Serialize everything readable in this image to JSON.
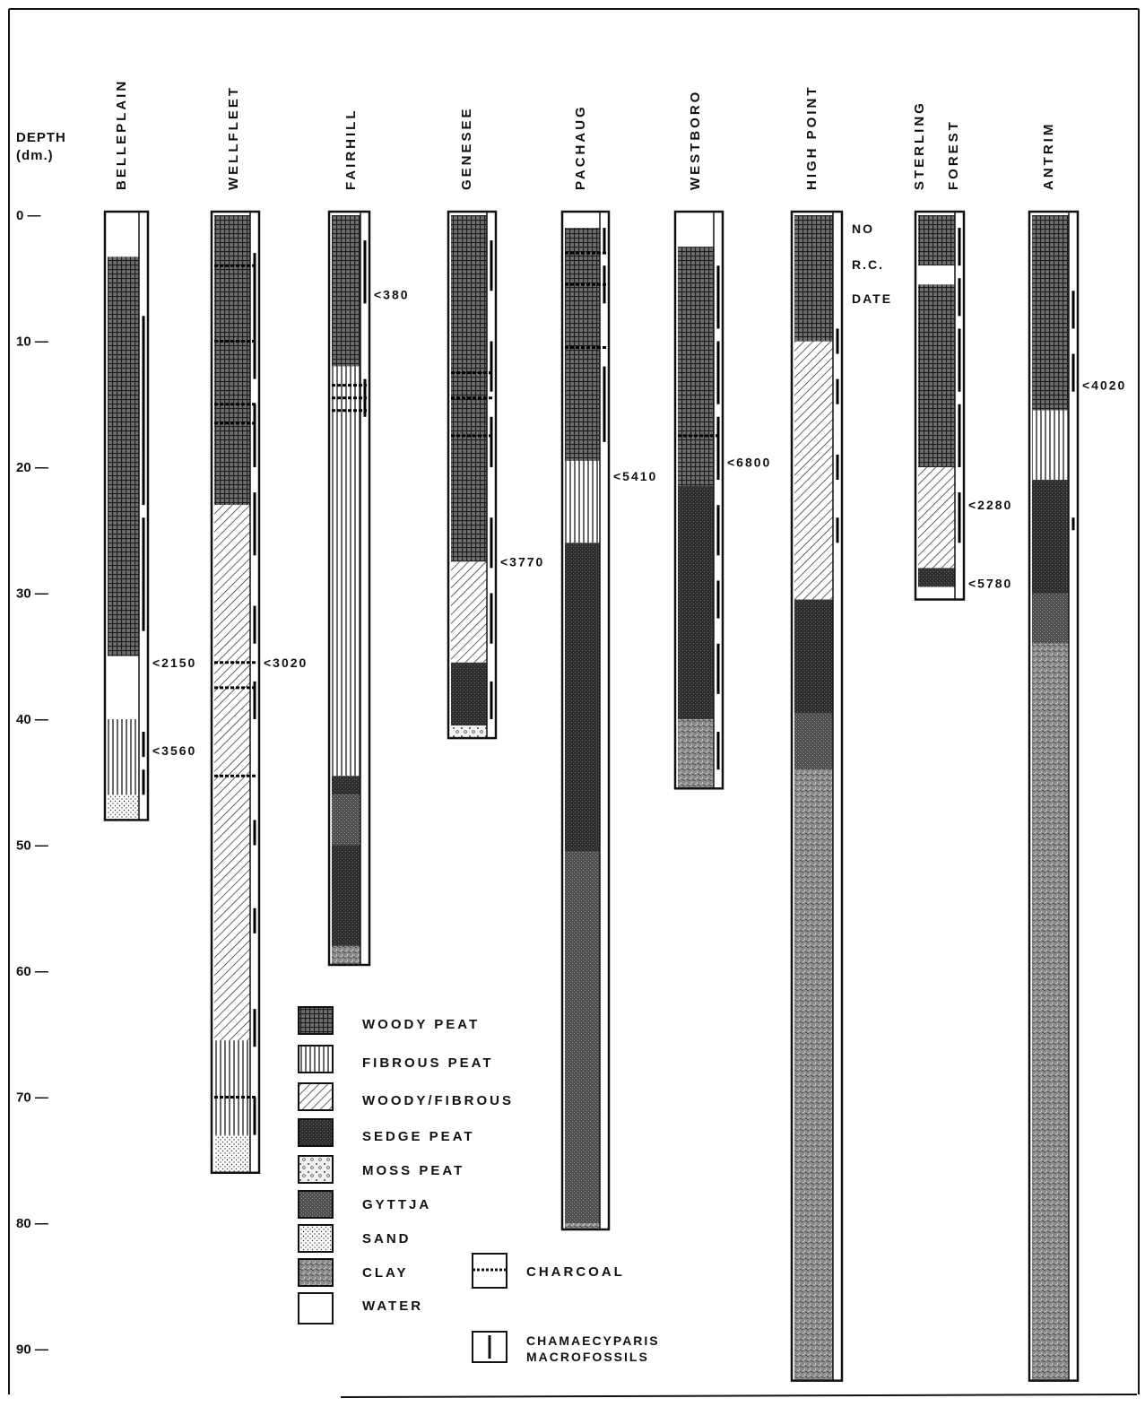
{
  "axis": {
    "label_line1": "DEPTH",
    "label_line2": "(dm.)",
    "ticks": [
      "0 —",
      "10 —",
      "20 —",
      "30 —",
      "40 —",
      "50 —",
      "60 —",
      "70 —",
      "80 —",
      "90 —"
    ]
  },
  "cores": [
    {
      "name": [
        "BELLEPLAIN"
      ],
      "bottom": 48,
      "layers": [
        [
          0,
          3.3,
          "water"
        ],
        [
          3.3,
          35,
          "woody_peat"
        ],
        [
          35,
          40,
          "water"
        ],
        [
          40,
          46,
          "fibrous_peat"
        ],
        [
          46,
          48,
          "sand"
        ]
      ],
      "charcoal": [],
      "chamae": [
        [
          8,
          23
        ],
        [
          24,
          33
        ],
        [
          41,
          43
        ],
        [
          44,
          46
        ]
      ],
      "dates": [
        {
          "depth": 35.5,
          "text": "<2150"
        },
        {
          "depth": 42.5,
          "text": "<3560"
        }
      ]
    },
    {
      "name": [
        "WELLFLEET"
      ],
      "bottom": 76,
      "layers": [
        [
          0,
          23,
          "woody_peat"
        ],
        [
          23,
          65.5,
          "woody_fibrous"
        ],
        [
          65.5,
          73,
          "fibrous_peat"
        ],
        [
          73,
          76,
          "sand"
        ]
      ],
      "charcoal": [
        4,
        10,
        15,
        16.5,
        35.5,
        37.5,
        44.5,
        70
      ],
      "chamae": [
        [
          3,
          13
        ],
        [
          15,
          20
        ],
        [
          22,
          27
        ],
        [
          31,
          34
        ],
        [
          37,
          40
        ],
        [
          48,
          50
        ],
        [
          55,
          57
        ],
        [
          63,
          66
        ],
        [
          70,
          73
        ]
      ],
      "dates": [
        {
          "depth": 35.5,
          "text": "<3020"
        }
      ]
    },
    {
      "name": [
        "FAIRHILL"
      ],
      "bottom": 59.5,
      "layers": [
        [
          0,
          12,
          "woody_peat"
        ],
        [
          12,
          44.5,
          "fibrous_peat"
        ],
        [
          44.5,
          46,
          "sedge_peat"
        ],
        [
          46,
          50,
          "gyttja"
        ],
        [
          50,
          58,
          "sedge_peat"
        ],
        [
          58,
          59.5,
          "clay"
        ]
      ],
      "charcoal": [
        13.5,
        14.5,
        15.5
      ],
      "chamae": [
        [
          2,
          7
        ],
        [
          13,
          16
        ]
      ],
      "dates": [
        {
          "depth": 6.3,
          "text": "<380"
        }
      ]
    },
    {
      "name": [
        "GENESEE"
      ],
      "bottom": 41.5,
      "layers": [
        [
          0,
          27.5,
          "woody_peat"
        ],
        [
          27.5,
          35.5,
          "woody_fibrous"
        ],
        [
          35.5,
          40.5,
          "sedge_peat"
        ],
        [
          40.5,
          41.5,
          "moss_peat"
        ]
      ],
      "charcoal": [
        12.5,
        14.5,
        17.5
      ],
      "chamae": [
        [
          2,
          6
        ],
        [
          10,
          14
        ],
        [
          16,
          20
        ],
        [
          24,
          28
        ],
        [
          30,
          34
        ],
        [
          37,
          40
        ]
      ],
      "dates": [
        {
          "depth": 27.5,
          "text": "<3770"
        }
      ]
    },
    {
      "name": [
        "PACHAUG"
      ],
      "bottom": 80.5,
      "layers": [
        [
          0,
          1,
          "water"
        ],
        [
          1,
          19.5,
          "woody_peat"
        ],
        [
          19.5,
          26,
          "fibrous_peat"
        ],
        [
          26,
          50.5,
          "sedge_peat"
        ],
        [
          50.5,
          80,
          "gyttja"
        ],
        [
          80,
          80.5,
          "clay"
        ]
      ],
      "charcoal": [
        3,
        5.5,
        10.5
      ],
      "chamae": [
        [
          1,
          3
        ],
        [
          4,
          7
        ],
        [
          12,
          18
        ]
      ],
      "dates": [
        {
          "depth": 20.7,
          "text": "<5410"
        }
      ]
    },
    {
      "name": [
        "WESTBORO"
      ],
      "bottom": 45.5,
      "layers": [
        [
          0,
          2.5,
          "water"
        ],
        [
          2.5,
          21.5,
          "woody_peat"
        ],
        [
          21.5,
          40,
          "sedge_peat"
        ],
        [
          40,
          45.5,
          "clay"
        ]
      ],
      "charcoal": [
        17.5
      ],
      "chamae": [
        [
          4,
          9
        ],
        [
          10,
          15
        ],
        [
          16,
          21
        ],
        [
          23,
          27
        ],
        [
          29,
          32
        ],
        [
          34,
          38
        ],
        [
          41,
          44
        ]
      ],
      "dates": [
        {
          "depth": 19.6,
          "text": "<6800"
        }
      ]
    },
    {
      "name": [
        "HIGH POINT"
      ],
      "bottom": 92.5,
      "layers": [
        [
          0,
          10,
          "woody_peat"
        ],
        [
          10,
          30.5,
          "woody_fibrous"
        ],
        [
          30.5,
          39.5,
          "sedge_peat"
        ],
        [
          39.5,
          44,
          "gyttja"
        ],
        [
          44,
          92.5,
          "clay"
        ]
      ],
      "charcoal": [],
      "chamae": [
        [
          9,
          11
        ],
        [
          13,
          15
        ],
        [
          19,
          21
        ],
        [
          24,
          26
        ]
      ],
      "dates": []
    },
    {
      "name": [
        "STERLING",
        "FOREST"
      ],
      "bottom": 30.5,
      "layers": [
        [
          0,
          4,
          "woody_peat"
        ],
        [
          4,
          5.5,
          "water"
        ],
        [
          5.5,
          20,
          "woody_peat"
        ],
        [
          20,
          28,
          "woody_fibrous"
        ],
        [
          28,
          29.5,
          "sedge_peat"
        ],
        [
          29.5,
          30.5,
          "water"
        ]
      ],
      "charcoal": [],
      "chamae": [
        [
          1,
          4
        ],
        [
          5,
          8
        ],
        [
          9,
          14
        ],
        [
          15,
          20
        ],
        [
          22,
          26
        ]
      ],
      "dates": [
        {
          "depth": 23,
          "text": "<2280"
        },
        {
          "depth": 29.2,
          "text": "<5780"
        }
      ]
    },
    {
      "name": [
        "ANTRIM"
      ],
      "bottom": 92.5,
      "layers": [
        [
          0,
          15.5,
          "woody_peat"
        ],
        [
          15.5,
          21,
          "fibrous_peat"
        ],
        [
          21,
          30,
          "sedge_peat"
        ],
        [
          30,
          34,
          "gyttja"
        ],
        [
          34,
          92.5,
          "clay"
        ]
      ],
      "charcoal": [],
      "chamae": [
        [
          6,
          9
        ],
        [
          11,
          14
        ],
        [
          24,
          25
        ]
      ],
      "dates": [
        {
          "depth": 13.5,
          "text": "<4020"
        }
      ]
    }
  ],
  "high_point_note": [
    "NO",
    "R.C.",
    "DATE"
  ],
  "legend": {
    "woody_peat": "WOODY PEAT",
    "fibrous_peat": "FIBROUS PEAT",
    "woody_fibrous": "WOODY/FIBROUS",
    "sedge_peat": "SEDGE PEAT",
    "moss_peat": "MOSS PEAT",
    "gyttja": "GYTTJA",
    "sand": "SAND",
    "clay": "CLAY",
    "water": "WATER",
    "charcoal": "CHARCOAL",
    "chamae_line1": "CHAMAECYPARIS",
    "chamae_line2": "MACROFOSSILS"
  }
}
